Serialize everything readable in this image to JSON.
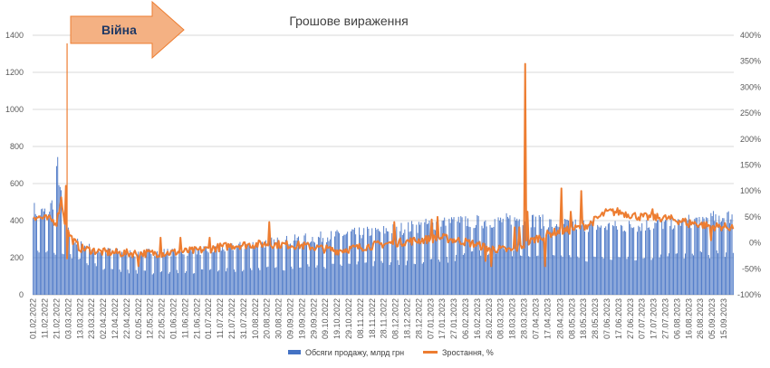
{
  "chart_data": {
    "type": "bar+line",
    "title": "Грошове вираження",
    "annotation": {
      "label": "Війна",
      "date": "02.03.2022"
    },
    "left_axis": {
      "min": 0,
      "max": 1400,
      "step": 200,
      "ticks": [
        "0",
        "200",
        "400",
        "600",
        "800",
        "1000",
        "1200",
        "1400"
      ]
    },
    "right_axis": {
      "min": -100,
      "max": 400,
      "step": 50,
      "ticks": [
        "-100%",
        "-50%",
        "0%",
        "50%",
        "100%",
        "150%",
        "200%",
        "250%",
        "300%",
        "350%",
        "400%"
      ]
    },
    "x_start": "01.02.2022",
    "x_end": "23.09.2023",
    "x_tick_labels": [
      "01.02.2022",
      "11.02.2022",
      "21.02.2022",
      "03.03.2022",
      "13.03.2022",
      "23.03.2022",
      "02.04.2022",
      "12.04.2022",
      "22.04.2022",
      "02.05.2022",
      "12.05.2022",
      "22.05.2022",
      "01.06.2022",
      "11.06.2022",
      "21.06.2022",
      "01.07.2022",
      "11.07.2022",
      "21.07.2022",
      "31.07.2022",
      "10.08.2022",
      "20.08.2022",
      "30.08.2022",
      "09.09.2022",
      "19.09.2022",
      "29.09.2022",
      "09.10.2022",
      "19.10.2022",
      "29.10.2022",
      "08.11.2022",
      "18.11.2022",
      "28.11.2022",
      "08.12.2022",
      "18.12.2022",
      "28.12.2022",
      "07.01.2023",
      "17.01.2023",
      "27.01.2023",
      "06.02.2023",
      "16.02.2023",
      "26.02.2023",
      "08.03.2023",
      "18.03.2023",
      "28.03.2023",
      "07.04.2023",
      "17.04.2023",
      "28.04.2023",
      "08.05.2023",
      "18.05.2023",
      "28.05.2023",
      "07.06.2023",
      "17.06.2023",
      "27.06.2023",
      "07.07.2023",
      "17.07.2023",
      "27.07.2023",
      "06.08.2023",
      "16.08.2023",
      "26.08.2023",
      "05.09.2023",
      "15.09.2023"
    ],
    "series": [
      {
        "name": "Обсяги продажу, млрд грн",
        "type": "bar",
        "axis": "left",
        "color": "#4472c4",
        "weekday_level_points": [
          [
            0,
            460
          ],
          [
            7,
            440
          ],
          [
            14,
            460
          ],
          [
            18,
            520
          ],
          [
            21,
            700
          ],
          [
            24,
            520
          ],
          [
            28,
            420
          ],
          [
            33,
            300
          ],
          [
            40,
            270
          ],
          [
            55,
            240
          ],
          [
            70,
            230
          ],
          [
            85,
            225
          ],
          [
            100,
            230
          ],
          [
            130,
            230
          ],
          [
            160,
            245
          ],
          [
            175,
            260
          ],
          [
            200,
            280
          ],
          [
            230,
            300
          ],
          [
            260,
            320
          ],
          [
            300,
            345
          ],
          [
            330,
            370
          ],
          [
            355,
            395
          ],
          [
            380,
            395
          ],
          [
            400,
            400
          ],
          [
            420,
            410
          ],
          [
            445,
            385
          ],
          [
            475,
            375
          ],
          [
            500,
            365
          ],
          [
            530,
            380
          ],
          [
            560,
            395
          ],
          [
            585,
            415
          ],
          [
            600,
            425
          ]
        ],
        "weekend_level_points": [
          [
            0,
            230
          ],
          [
            30,
            210
          ],
          [
            60,
            140
          ],
          [
            90,
            120
          ],
          [
            130,
            125
          ],
          [
            160,
            130
          ],
          [
            200,
            140
          ],
          [
            230,
            150
          ],
          [
            260,
            160
          ],
          [
            300,
            170
          ],
          [
            330,
            180
          ],
          [
            355,
            190
          ],
          [
            380,
            220
          ],
          [
            420,
            230
          ],
          [
            445,
            200
          ],
          [
            475,
            190
          ],
          [
            500,
            200
          ],
          [
            530,
            200
          ],
          [
            560,
            210
          ],
          [
            585,
            220
          ],
          [
            600,
            230
          ]
        ]
      },
      {
        "name": "Зростання, %",
        "type": "line",
        "axis": "right",
        "color": "#ed7d31",
        "level_points": [
          [
            0,
            52
          ],
          [
            7,
            48
          ],
          [
            14,
            45
          ],
          [
            20,
            40
          ],
          [
            24,
            85
          ],
          [
            27,
            42
          ],
          [
            30,
            20
          ],
          [
            34,
            5
          ],
          [
            40,
            -10
          ],
          [
            60,
            -18
          ],
          [
            80,
            -20
          ],
          [
            110,
            -20
          ],
          [
            140,
            -15
          ],
          [
            170,
            -5
          ],
          [
            200,
            -2
          ],
          [
            230,
            -5
          ],
          [
            260,
            -15
          ],
          [
            300,
            -2
          ],
          [
            330,
            5
          ],
          [
            350,
            10
          ],
          [
            370,
            2
          ],
          [
            390,
            -10
          ],
          [
            410,
            -15
          ],
          [
            430,
            8
          ],
          [
            445,
            20
          ],
          [
            460,
            25
          ],
          [
            475,
            35
          ],
          [
            490,
            58
          ],
          [
            500,
            60
          ],
          [
            510,
            55
          ],
          [
            520,
            50
          ],
          [
            540,
            48
          ],
          [
            560,
            40
          ],
          [
            580,
            32
          ],
          [
            600,
            30
          ]
        ],
        "spikes": [
          [
            28,
            110
          ],
          [
            29,
            -30
          ],
          [
            90,
            -45
          ],
          [
            109,
            10
          ],
          [
            126,
            10
          ],
          [
            151,
            10
          ],
          [
            202,
            40
          ],
          [
            309,
            40
          ],
          [
            341,
            45
          ],
          [
            346,
            50
          ],
          [
            387,
            -35
          ],
          [
            392,
            -45
          ],
          [
            412,
            30
          ],
          [
            416,
            30
          ],
          [
            421,
            345
          ],
          [
            423,
            60
          ],
          [
            438,
            -45
          ],
          [
            452,
            105
          ],
          [
            460,
            60
          ],
          [
            469,
            100
          ],
          [
            494,
            65
          ],
          [
            530,
            65
          ],
          [
            561,
            30
          ],
          [
            580,
            5
          ],
          [
            604,
            45
          ],
          [
            623,
            35
          ]
        ]
      }
    ],
    "grid": "horizontal",
    "legend_position": "bottom"
  }
}
